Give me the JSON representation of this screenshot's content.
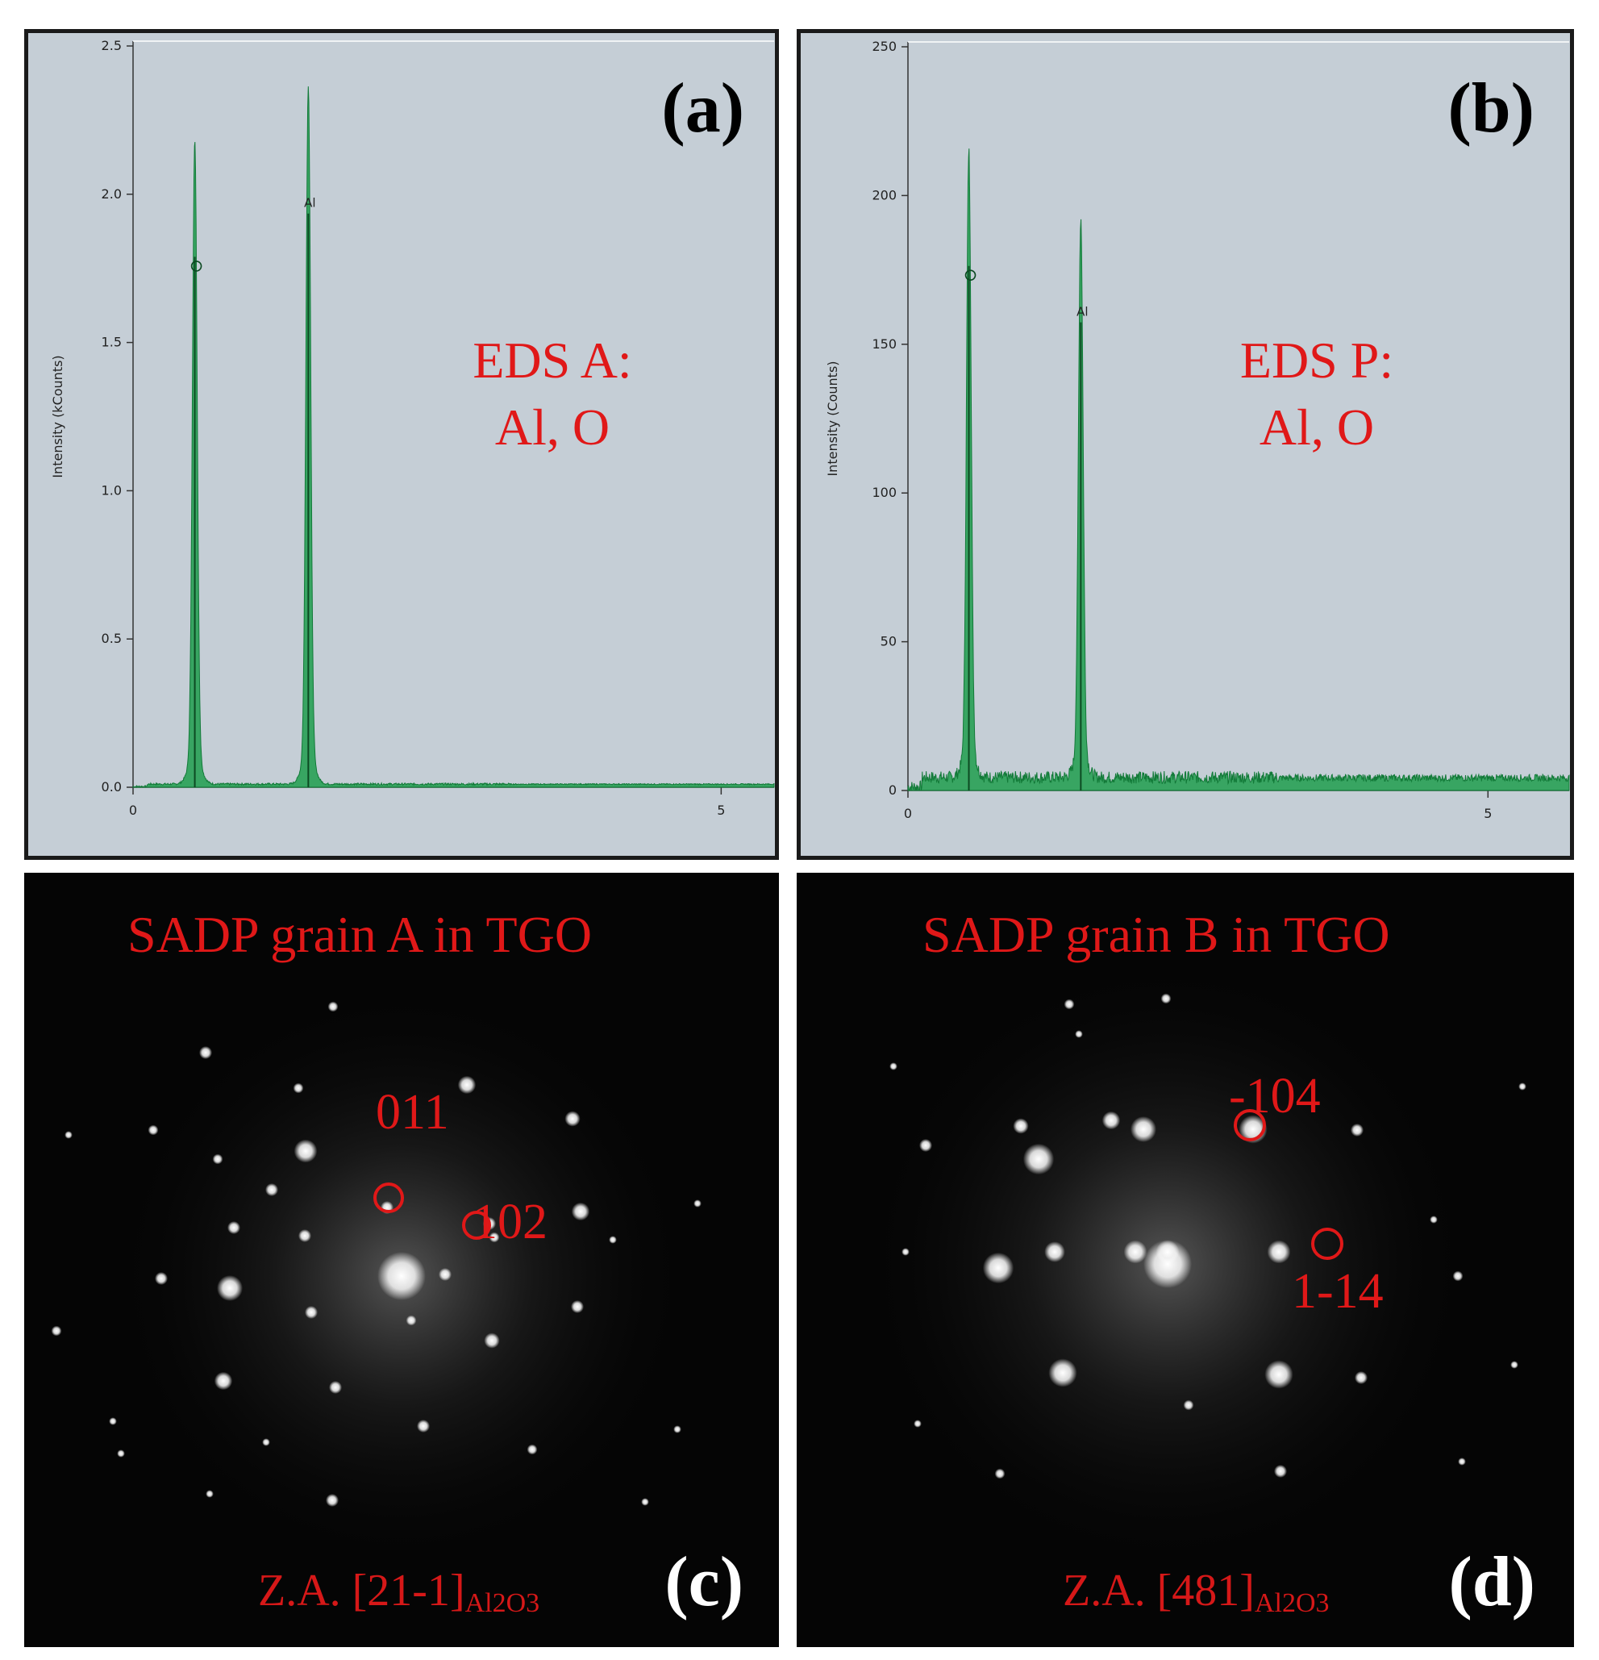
{
  "panels": {
    "a": {
      "tag": "(a)",
      "note": "EDS A:\nAl, O"
    },
    "b": {
      "tag": "(b)",
      "note": "EDS P:\nAl, O"
    },
    "c": {
      "tag": "(c)",
      "title": "SADP grain A in TGO",
      "spot1": "011",
      "spot2": "102",
      "za_prefix": "Z.A. [21-1]",
      "za_sub": "Al2O3"
    },
    "d": {
      "tag": "(d)",
      "title": "SADP grain B in TGO",
      "spot1": "-104",
      "spot2": "1-14",
      "za_prefix": "Z.A. [481]",
      "za_sub": "Al2O3"
    }
  },
  "chart_data": [
    {
      "type": "line",
      "panel": "(a)",
      "ylabel": "Intensity (kCounts)",
      "xlabel": "",
      "xlim": [
        0,
        5.45
      ],
      "ylim": [
        0,
        2.5
      ],
      "xticks": [
        "0",
        "5"
      ],
      "yticks": [
        "0.0",
        "0.5",
        "1.0",
        "1.5",
        "2.0",
        "2.5"
      ],
      "peaks": [
        {
          "label": "O",
          "x": 0.525,
          "y": 2.08
        },
        {
          "label": "Al",
          "x": 1.49,
          "y": 2.25
        }
      ],
      "baseline": 0.01,
      "color": "#1f9e4e"
    },
    {
      "type": "line",
      "panel": "(b)",
      "ylabel": "Intensity (Counts)",
      "xlabel": "",
      "xlim": [
        0,
        5.7
      ],
      "ylim": [
        0,
        250
      ],
      "xticks": [
        "0",
        "5"
      ],
      "yticks": [
        "0",
        "50",
        "100",
        "150",
        "200",
        "250"
      ],
      "peaks": [
        {
          "label": "O",
          "x": 0.525,
          "y": 205
        },
        {
          "label": "Al",
          "x": 1.49,
          "y": 183
        }
      ],
      "baseline": 4,
      "color": "#1f9e4e"
    }
  ]
}
